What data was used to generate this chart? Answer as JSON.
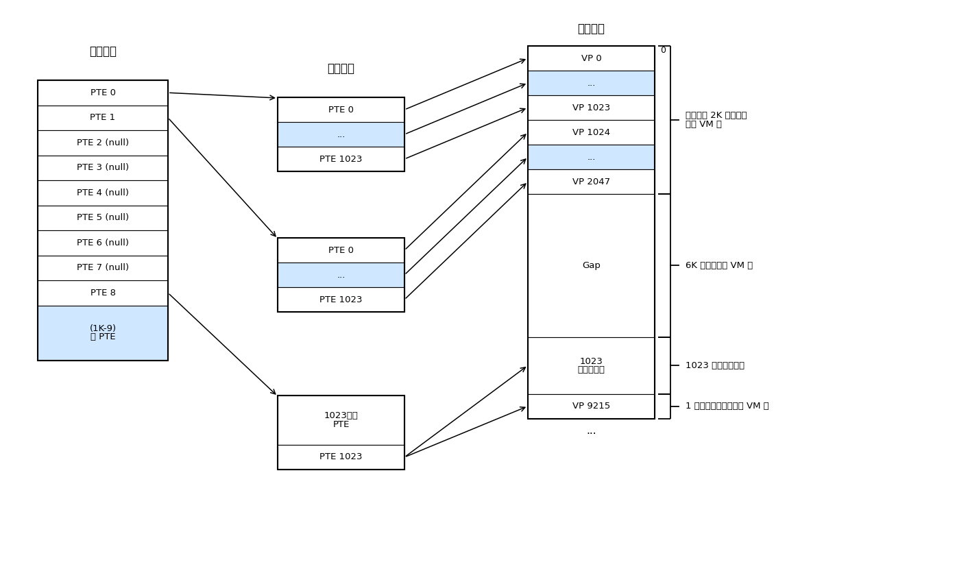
{
  "bg_color": "#ffffff",
  "l1_header": "一级页表",
  "l2_header": "二级页表",
  "vm_header": "虚拟内存",
  "l1_entries": [
    "PTE 0",
    "PTE 1",
    "PTE 2 (null)",
    "PTE 3 (null)",
    "PTE 4 (null)",
    "PTE 5 (null)",
    "PTE 6 (null)",
    "PTE 7 (null)",
    "PTE 8",
    "(1K-9)\n空 PTE"
  ],
  "l1_colors": [
    "#ffffff",
    "#ffffff",
    "#ffffff",
    "#ffffff",
    "#ffffff",
    "#ffffff",
    "#ffffff",
    "#ffffff",
    "#ffffff",
    "#d0e8ff"
  ],
  "l2a_entries": [
    "PTE 0",
    "...",
    "PTE 1023"
  ],
  "l2a_colors": [
    "#ffffff",
    "#d0e8ff",
    "#ffffff"
  ],
  "l2b_entries": [
    "PTE 0",
    "...",
    "PTE 1023"
  ],
  "l2b_colors": [
    "#ffffff",
    "#d0e8ff",
    "#ffffff"
  ],
  "l2c_entries": [
    "1023个空\nPTE",
    "PTE 1023"
  ],
  "l2c_colors": [
    "#ffffff",
    "#ffffff"
  ],
  "vm_entries": [
    "VP 0",
    "...",
    "VP 1023",
    "VP 1024",
    "...",
    "VP 2047",
    "Gap",
    "1023\n未分配的页",
    "VP 9215"
  ],
  "vm_colors": [
    "#ffffff",
    "#d0e8ff",
    "#ffffff",
    "#ffffff",
    "#d0e8ff",
    "#ffffff",
    "#ffffff",
    "#ffffff",
    "#ffffff"
  ],
  "ann1": "已分配的 2K 个代码和\n数据 VM 页",
  "ann2": "6K 个未分配的 VM 页",
  "ann3": "1023 个未分配的页",
  "ann4": "1 个已分配的用做栈的 VM 页",
  "label_0": "0"
}
